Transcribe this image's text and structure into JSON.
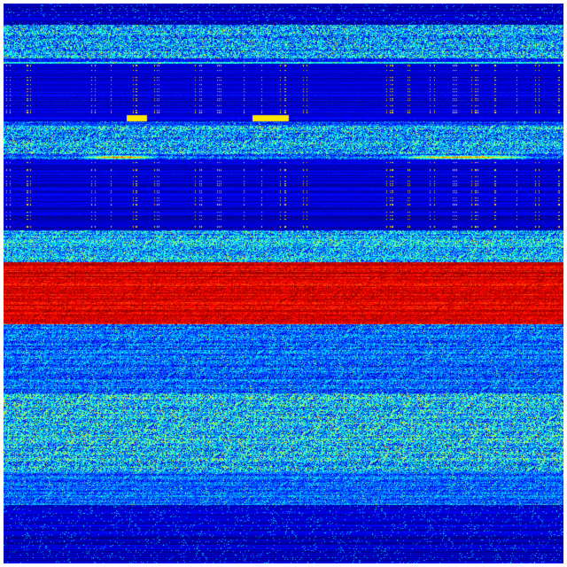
{
  "figure": {
    "kind": "spectrogram-waterfall",
    "colormap": "jet",
    "colormap_stops": [
      "#00007f",
      "#0000ff",
      "#00ffff",
      "#ffff00",
      "#ff0000",
      "#7f0000"
    ],
    "background": "#00007f",
    "border": "#ffffff"
  }
}
